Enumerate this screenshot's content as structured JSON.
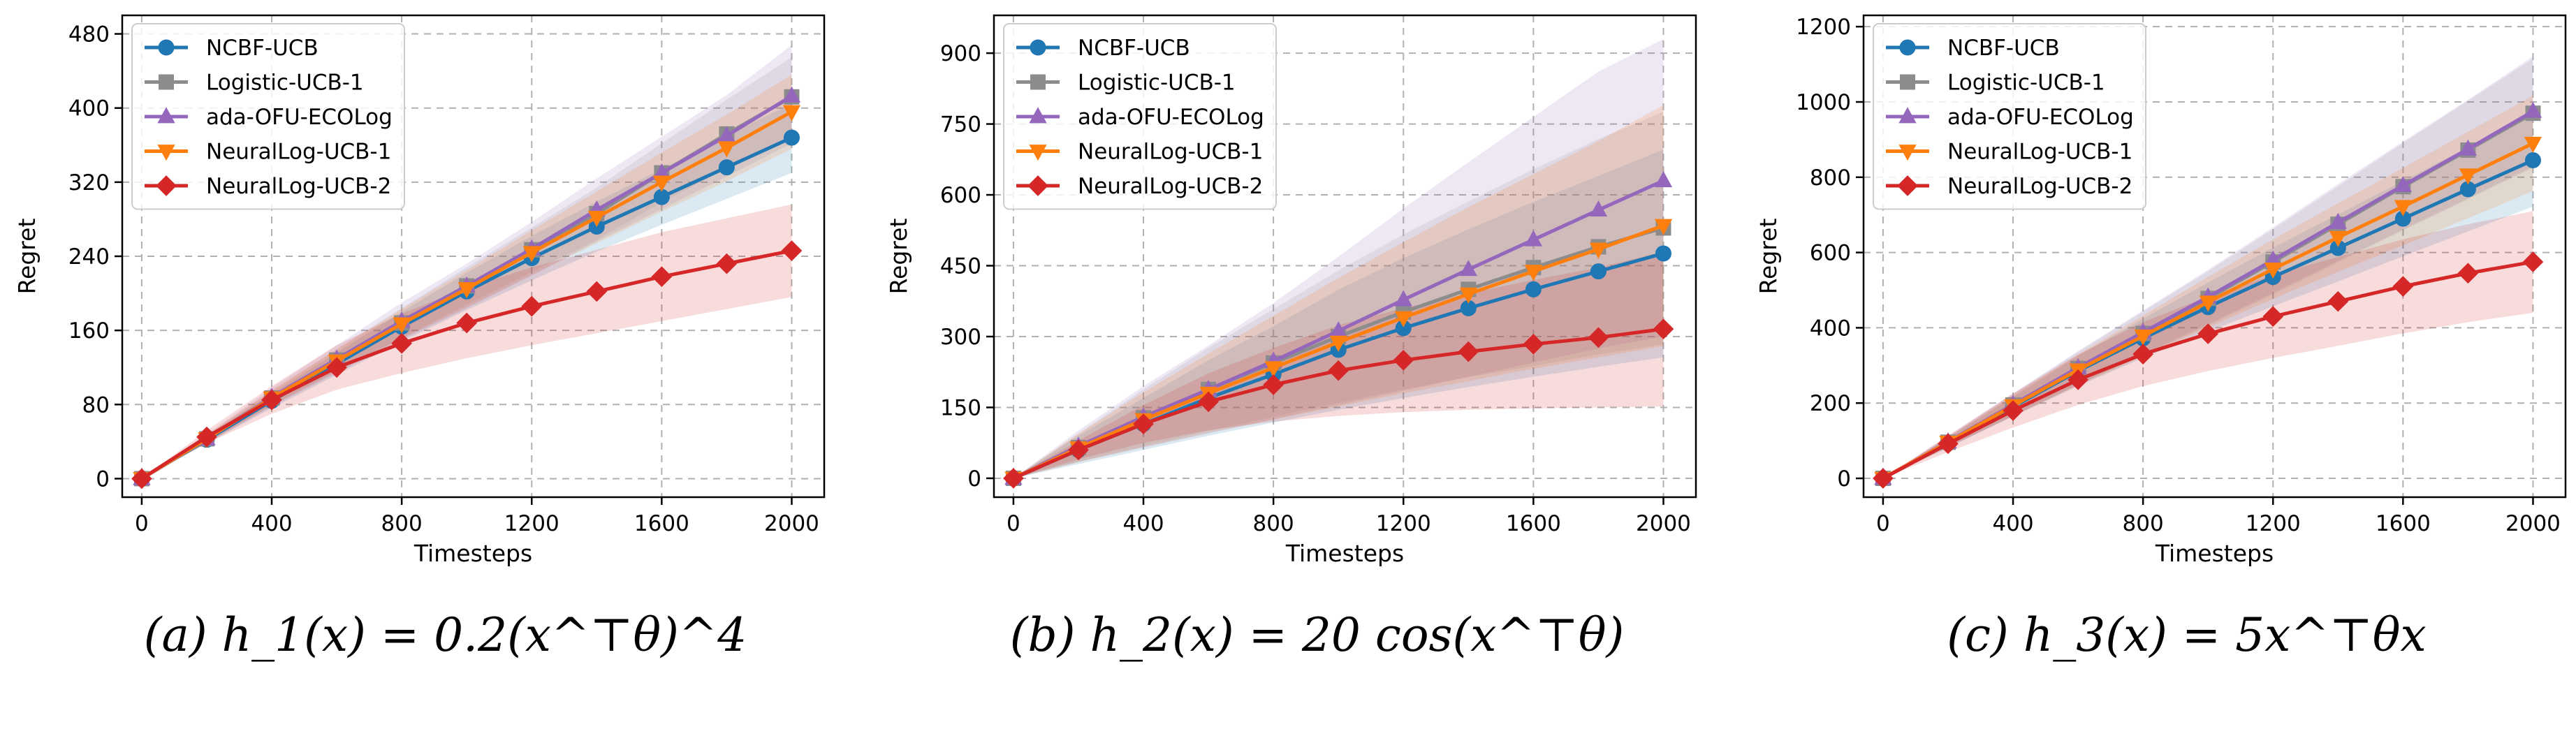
{
  "colors": {
    "NCBF-UCB": "#1f77b4",
    "Logistic-UCB-1": "#8c8c8c",
    "ada-OFU-ECOLog": "#9467bd",
    "NeuralLog-UCB-1": "#ff7f0e",
    "NeuralLog-UCB-2": "#d62728"
  },
  "chart_data": [
    {
      "type": "line",
      "caption": "(a) h_1(x) = 0.2(x^⊤θ)^4",
      "xlabel": "Timesteps",
      "ylabel": "Regret",
      "xlim": [
        -60,
        2100
      ],
      "ylim": [
        -20,
        500
      ],
      "xticks": [
        0,
        400,
        800,
        1200,
        1600,
        2000
      ],
      "yticks": [
        0,
        80,
        160,
        240,
        320,
        400,
        480
      ],
      "grid": true,
      "legend": "top-left",
      "x": [
        0,
        200,
        400,
        600,
        800,
        1000,
        1200,
        1400,
        1600,
        1800,
        2000
      ],
      "series": [
        {
          "name": "NCBF-UCB",
          "marker": "circle",
          "values": [
            0,
            42,
            84,
            124,
            164,
            202,
            238,
            272,
            304,
            336,
            368
          ],
          "lower": [
            0,
            38,
            76,
            112,
            148,
            182,
            214,
            245,
            274,
            302,
            330
          ],
          "upper": [
            0,
            46,
            92,
            136,
            180,
            222,
            262,
            299,
            334,
            370,
            405
          ]
        },
        {
          "name": "Logistic-UCB-1",
          "marker": "square",
          "values": [
            0,
            43,
            87,
            128,
            168,
            208,
            247,
            286,
            330,
            372,
            412
          ],
          "lower": [
            0,
            39,
            79,
            116,
            152,
            188,
            223,
            258,
            298,
            335,
            370
          ],
          "upper": [
            0,
            47,
            95,
            140,
            184,
            228,
            271,
            314,
            362,
            409,
            455
          ]
        },
        {
          "name": "ada-OFU-ECOLog",
          "marker": "triangle-up",
          "values": [
            0,
            43,
            88,
            129,
            170,
            208,
            248,
            290,
            330,
            370,
            413
          ],
          "lower": [
            0,
            38,
            78,
            114,
            150,
            184,
            219,
            256,
            291,
            326,
            362
          ],
          "upper": [
            0,
            48,
            98,
            144,
            190,
            232,
            277,
            324,
            369,
            414,
            468
          ]
        },
        {
          "name": "NeuralLog-UCB-1",
          "marker": "triangle-down",
          "values": [
            0,
            43,
            87,
            127,
            167,
            205,
            244,
            282,
            320,
            357,
            396
          ],
          "lower": [
            0,
            39,
            79,
            115,
            151,
            185,
            220,
            254,
            288,
            321,
            356
          ],
          "upper": [
            0,
            47,
            95,
            139,
            183,
            225,
            268,
            310,
            352,
            393,
            436
          ]
        },
        {
          "name": "NeuralLog-UCB-2",
          "marker": "diamond",
          "values": [
            0,
            45,
            85,
            120,
            146,
            168,
            186,
            202,
            218,
            232,
            246
          ],
          "lower": [
            0,
            38,
            70,
            96,
            114,
            130,
            144,
            157,
            170,
            183,
            196
          ],
          "upper": [
            0,
            52,
            100,
            144,
            178,
            206,
            228,
            247,
            266,
            281,
            296
          ]
        }
      ]
    },
    {
      "type": "line",
      "caption": "(b) h_2(x) = 20 cos(x^⊤θ)",
      "xlabel": "Timesteps",
      "ylabel": "Regret",
      "xlim": [
        -60,
        2100
      ],
      "ylim": [
        -40,
        980
      ],
      "xticks": [
        0,
        400,
        800,
        1200,
        1600,
        2000
      ],
      "yticks": [
        0,
        150,
        300,
        450,
        600,
        750,
        900
      ],
      "grid": true,
      "legend": "top-left",
      "x": [
        0,
        200,
        400,
        600,
        800,
        1000,
        1200,
        1400,
        1600,
        1800,
        2000
      ],
      "series": [
        {
          "name": "NCBF-UCB",
          "marker": "circle",
          "values": [
            0,
            60,
            115,
            170,
            220,
            272,
            318,
            360,
            400,
            438,
            476
          ],
          "lower": [
            0,
            30,
            60,
            90,
            118,
            145,
            170,
            193,
            215,
            236,
            256
          ],
          "upper": [
            0,
            90,
            170,
            250,
            322,
            399,
            466,
            527,
            585,
            640,
            696
          ]
        },
        {
          "name": "Logistic-UCB-1",
          "marker": "square",
          "values": [
            0,
            65,
            128,
            188,
            244,
            300,
            352,
            400,
            446,
            490,
            530
          ],
          "lower": [
            0,
            35,
            68,
            100,
            130,
            160,
            188,
            214,
            238,
            262,
            284
          ],
          "upper": [
            0,
            95,
            188,
            276,
            358,
            440,
            516,
            586,
            654,
            718,
            776
          ]
        },
        {
          "name": "ada-OFU-ECOLog",
          "marker": "triangle-up",
          "values": [
            0,
            68,
            130,
            188,
            248,
            312,
            378,
            442,
            505,
            568,
            630
          ],
          "lower": [
            0,
            35,
            65,
            95,
            125,
            155,
            185,
            215,
            245,
            275,
            300
          ],
          "upper": [
            0,
            101,
            195,
            281,
            371,
            469,
            571,
            669,
            765,
            861,
            930
          ]
        },
        {
          "name": "NeuralLog-UCB-1",
          "marker": "triangle-down",
          "values": [
            0,
            64,
            124,
            180,
            234,
            288,
            340,
            390,
            438,
            485,
            535
          ],
          "lower": [
            0,
            34,
            66,
            96,
            124,
            152,
            180,
            206,
            232,
            256,
            280
          ],
          "upper": [
            0,
            94,
            182,
            264,
            344,
            424,
            500,
            574,
            644,
            714,
            790
          ]
        },
        {
          "name": "NeuralLog-UCB-2",
          "marker": "diamond",
          "values": [
            0,
            60,
            115,
            162,
            198,
            228,
            250,
            268,
            284,
            298,
            316
          ],
          "lower": [
            0,
            40,
            75,
            102,
            120,
            132,
            140,
            145,
            148,
            150,
            152
          ],
          "upper": [
            0,
            80,
            155,
            222,
            276,
            324,
            360,
            391,
            420,
            446,
            480
          ]
        }
      ]
    },
    {
      "type": "line",
      "caption": "(c) h_3(x) = 5x^⊤θx",
      "xlabel": "Timesteps",
      "ylabel": "Regret",
      "xlim": [
        -60,
        2100
      ],
      "ylim": [
        -50,
        1230
      ],
      "xticks": [
        0,
        400,
        800,
        1200,
        1600,
        2000
      ],
      "yticks": [
        0,
        200,
        400,
        600,
        800,
        1000,
        1200
      ],
      "grid": true,
      "legend": "top-left",
      "x": [
        0,
        200,
        400,
        600,
        800,
        1000,
        1200,
        1400,
        1600,
        1800,
        2000
      ],
      "series": [
        {
          "name": "NCBF-UCB",
          "marker": "circle",
          "values": [
            0,
            95,
            190,
            285,
            372,
            455,
            535,
            612,
            690,
            768,
            845
          ],
          "lower": [
            0,
            82,
            164,
            245,
            320,
            390,
            457,
            523,
            590,
            656,
            722
          ],
          "upper": [
            0,
            108,
            216,
            325,
            424,
            520,
            613,
            701,
            790,
            880,
            968
          ]
        },
        {
          "name": "Logistic-UCB-1",
          "marker": "square",
          "values": [
            0,
            96,
            195,
            292,
            385,
            478,
            575,
            675,
            775,
            872,
            970
          ],
          "lower": [
            0,
            82,
            166,
            248,
            327,
            406,
            488,
            574,
            659,
            741,
            825
          ],
          "upper": [
            0,
            110,
            224,
            336,
            443,
            550,
            662,
            776,
            891,
            1003,
            1115
          ]
        },
        {
          "name": "ada-OFU-ECOLog",
          "marker": "triangle-up",
          "values": [
            0,
            97,
            196,
            294,
            388,
            482,
            580,
            680,
            778,
            875,
            975
          ],
          "lower": [
            0,
            82,
            166,
            250,
            330,
            410,
            493,
            578,
            661,
            744,
            829
          ],
          "upper": [
            0,
            112,
            226,
            338,
            446,
            554,
            667,
            782,
            895,
            1006,
            1121
          ]
        },
        {
          "name": "NeuralLog-UCB-1",
          "marker": "triangle-down",
          "values": [
            0,
            96,
            193,
            288,
            378,
            468,
            556,
            640,
            722,
            806,
            890
          ],
          "lower": [
            0,
            83,
            166,
            247,
            324,
            401,
            477,
            549,
            619,
            691,
            763
          ],
          "upper": [
            0,
            109,
            220,
            329,
            432,
            535,
            635,
            731,
            825,
            921,
            1017
          ]
        },
        {
          "name": "NeuralLog-UCB-2",
          "marker": "diamond",
          "values": [
            0,
            92,
            180,
            262,
            330,
            384,
            430,
            470,
            510,
            545,
            575
          ],
          "lower": [
            0,
            70,
            135,
            195,
            245,
            285,
            320,
            352,
            385,
            415,
            440
          ],
          "upper": [
            0,
            114,
            225,
            329,
            415,
            483,
            540,
            588,
            635,
            675,
            710
          ]
        }
      ]
    }
  ]
}
